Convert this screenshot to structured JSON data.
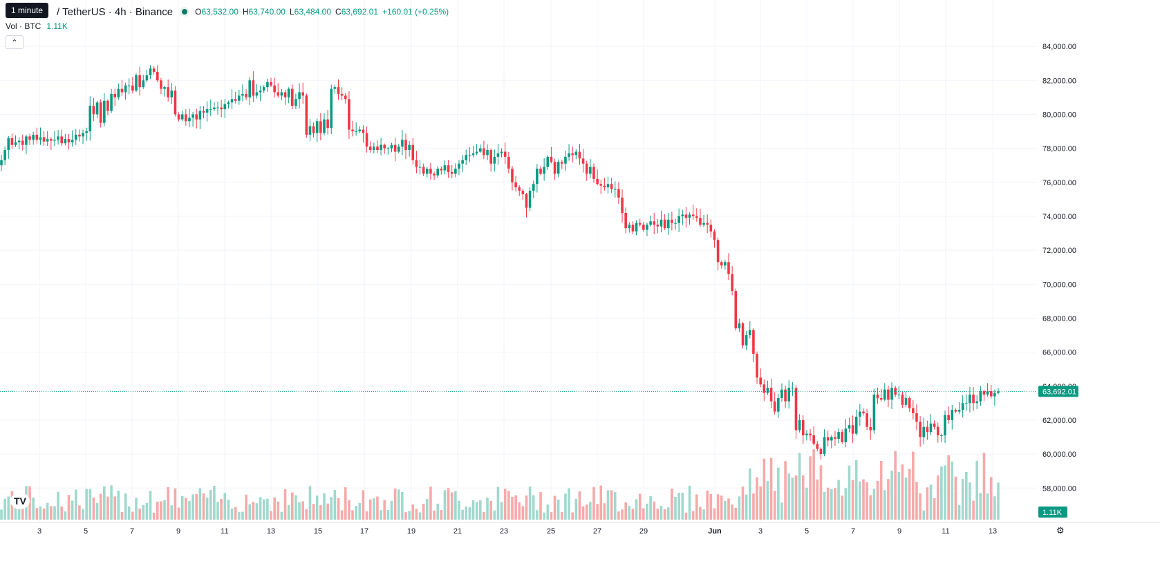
{
  "legend": {
    "tooltip": "1 minute",
    "symbol": "/ TetherUS · 4h · Binance",
    "open_key": "O",
    "open": "63,532.00",
    "high_key": "H",
    "high": "63,740.00",
    "low_key": "L",
    "low": "63,484.00",
    "close_key": "C",
    "close": "63,692.01",
    "change": "+160.01 (+0.25%)"
  },
  "volume_legend": {
    "label": "Vol · BTC",
    "value": "1.11K"
  },
  "collapse_icon": "chevron-up-icon",
  "logo_text": "TV",
  "settings_icon": "gear-icon",
  "colors": {
    "up": "#089981",
    "down": "#f23645",
    "up_vol": "#9fd9cd",
    "down_vol": "#f7a9a9",
    "grid": "#f0f3fa"
  },
  "chart_data": {
    "type": "candlestick",
    "interval": "4h",
    "y_axis": {
      "ticks": [
        84000,
        82000,
        80000,
        78000,
        76000,
        74000,
        72000,
        70000,
        68000,
        66000,
        64000,
        62000,
        60000,
        58000
      ],
      "tick_labels": [
        "84,000.00",
        "82,000.00",
        "80,000.00",
        "78,000.00",
        "76,000.00",
        "74,000.00",
        "72,000.00",
        "70,000.00",
        "68,000.00",
        "66,000.00",
        "64,000.00",
        "62,000.00",
        "60,000.00",
        "58,000.00"
      ],
      "range": [
        57400,
        84900
      ]
    },
    "x_axis": {
      "labels": [
        "3",
        "5",
        "7",
        "9",
        "11",
        "13",
        "15",
        "17",
        "19",
        "21",
        "23",
        "25",
        "27",
        "29",
        "Jun",
        "3",
        "5",
        "7",
        "9",
        "11",
        "13"
      ]
    },
    "last_price": 63692.01,
    "last_price_label": "63,692.01",
    "last_volume_label": "1.11K",
    "closes": [
      77300,
      77900,
      78600,
      78200,
      78350,
      78450,
      78200,
      78700,
      78500,
      78800,
      78500,
      78650,
      78400,
      78550,
      78450,
      78500,
      78700,
      78300,
      78550,
      78350,
      78500,
      78800,
      78700,
      78900,
      79000,
      80500,
      80000,
      80700,
      79500,
      80800,
      80200,
      81200,
      81000,
      81500,
      81300,
      81700,
      81700,
      81400,
      82300,
      81600,
      82000,
      82300,
      82700,
      82500,
      82000,
      81500,
      81600,
      81000,
      81400,
      80000,
      79700,
      80000,
      79600,
      79800,
      80000,
      79700,
      80200,
      80100,
      80300,
      80300,
      80400,
      80400,
      80300,
      80600,
      80700,
      80900,
      80800,
      81100,
      81200,
      81000,
      82000,
      81100,
      81300,
      81400,
      81600,
      81900,
      81700,
      81300,
      81100,
      81300,
      81000,
      81500,
      80500,
      80900,
      81300,
      81100,
      78800,
      79300,
      78900,
      79600,
      78900,
      79700,
      79200,
      81500,
      81600,
      81200,
      81100,
      80900,
      79100,
      79000,
      79000,
      79100,
      78900,
      78100,
      77900,
      78100,
      77900,
      78200,
      78000,
      78000,
      78200,
      77800,
      78100,
      78500,
      77900,
      78200,
      77300,
      76900,
      76900,
      76500,
      76800,
      76500,
      76400,
      76800,
      76700,
      77000,
      76600,
      76500,
      76800,
      77100,
      77300,
      77600,
      77600,
      77700,
      77800,
      78000,
      77600,
      77900,
      77100,
      77500,
      77700,
      77800,
      77500,
      76800,
      76000,
      75700,
      75500,
      75300,
      74500,
      75500,
      75900,
      76800,
      76500,
      76900,
      77500,
      77200,
      76500,
      77200,
      77100,
      77500,
      77700,
      77600,
      77800,
      77400,
      77100,
      76500,
      76900,
      76200,
      75900,
      75800,
      75700,
      75900,
      75600,
      75600,
      75100,
      74200,
      73300,
      73500,
      73100,
      73600,
      73500,
      73200,
      73500,
      73700,
      73500,
      73400,
      73800,
      73300,
      73800,
      73600,
      73600,
      74000,
      74100,
      73900,
      74100,
      74000,
      73900,
      73500,
      73600,
      73500,
      73100,
      72600,
      71300,
      71100,
      71300,
      70600,
      69600,
      67400,
      67700,
      66400,
      67000,
      67300,
      65900,
      64500,
      64100,
      63600,
      63900,
      63100,
      62500,
      63300,
      63800,
      63100,
      63900,
      63900,
      61400,
      62000,
      61100,
      61200,
      61100,
      60600,
      60300,
      60000,
      61000,
      60800,
      61000,
      60900,
      61300,
      60700,
      61500,
      61700,
      61200,
      62200,
      62500,
      62400,
      61600,
      61400,
      63500,
      63300,
      63200,
      63800,
      63200,
      63900,
      63500,
      63500,
      62900,
      63300,
      62700,
      62400,
      61900,
      61000,
      61600,
      61300,
      61800,
      61600,
      61100,
      61100,
      62300,
      62000,
      62600,
      62500,
      62600,
      63000,
      63000,
      63500,
      63000,
      63100,
      63700,
      63500,
      63700,
      63400,
      63600,
      63692
    ],
    "volume_label": "Vol · BTC"
  }
}
